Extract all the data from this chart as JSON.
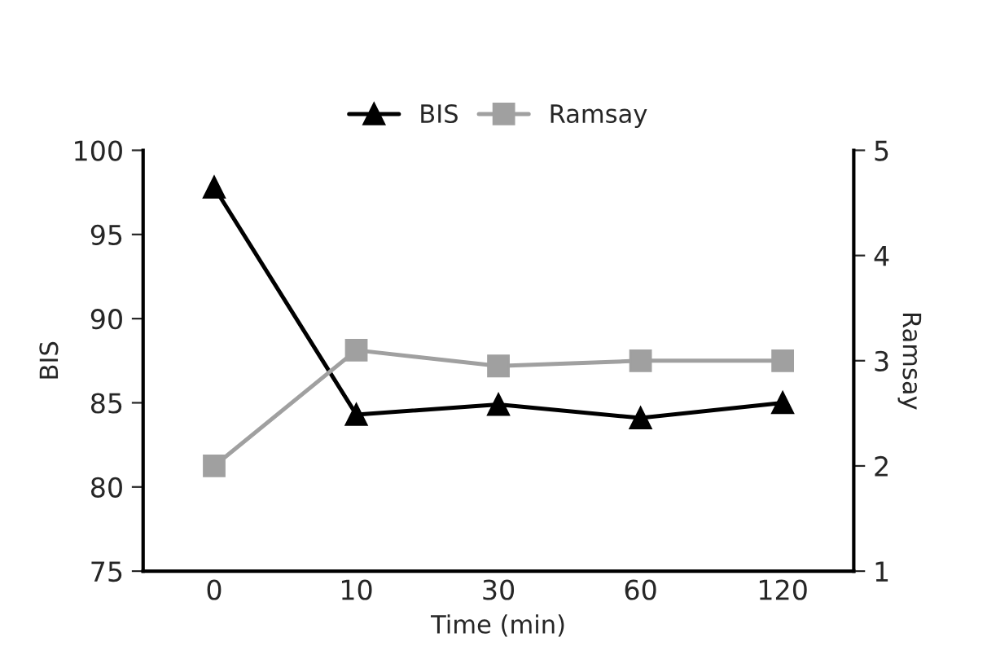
{
  "chart_data": {
    "type": "line",
    "xlabel": "Time (min)",
    "ylabel": "BIS",
    "y2label": "Ramsay",
    "categories": [
      "0",
      "10",
      "30",
      "60",
      "120"
    ],
    "series": [
      {
        "name": "BIS",
        "color": "#000000",
        "marker": "triangle",
        "values": [
          97.8,
          84.3,
          84.9,
          84.1,
          85.0
        ]
      },
      {
        "name": "Ramsay",
        "color": "#a0a0a0",
        "marker": "square",
        "axis": "y2",
        "values": [
          2.0,
          3.1,
          2.95,
          3.0,
          3.0
        ]
      }
    ],
    "ylim": [
      75,
      100
    ],
    "yticks": [
      75,
      80,
      85,
      90,
      95,
      100
    ],
    "y2lim": [
      1,
      5
    ],
    "y2ticks": [
      1,
      2,
      3,
      4,
      5
    ],
    "grid": false,
    "legend": "top"
  }
}
